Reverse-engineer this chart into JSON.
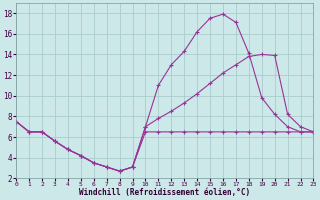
{
  "xlabel": "Windchill (Refroidissement éolien,°C)",
  "background_color": "#cce8e8",
  "grid_color": "#aacccc",
  "line_color": "#993399",
  "xlim": [
    0,
    23
  ],
  "ylim": [
    2,
    19
  ],
  "yticks": [
    2,
    4,
    6,
    8,
    10,
    12,
    14,
    16,
    18
  ],
  "xticks": [
    0,
    1,
    2,
    3,
    4,
    5,
    6,
    7,
    8,
    9,
    10,
    11,
    12,
    13,
    14,
    15,
    16,
    17,
    18,
    19,
    20,
    21,
    22,
    23
  ],
  "line1_x": [
    0,
    1,
    2,
    3,
    4,
    5,
    6,
    7,
    8,
    9,
    10,
    11,
    12,
    13,
    14,
    15,
    16,
    17,
    18,
    19,
    20,
    21,
    22,
    23
  ],
  "line1_y": [
    7.5,
    6.5,
    6.5,
    5.6,
    4.8,
    4.2,
    3.5,
    3.1,
    2.7,
    3.1,
    7.0,
    11.0,
    13.0,
    14.3,
    16.2,
    17.5,
    17.9,
    17.1,
    14.1,
    9.8,
    8.2,
    7.0,
    6.5,
    6.5
  ],
  "line2_x": [
    0,
    1,
    2,
    3,
    4,
    5,
    6,
    7,
    8,
    9,
    10,
    11,
    12,
    13,
    14,
    15,
    16,
    17,
    18,
    19,
    20,
    21,
    22,
    23
  ],
  "line2_y": [
    7.5,
    6.5,
    6.5,
    5.6,
    4.8,
    4.2,
    3.5,
    3.1,
    2.7,
    3.1,
    7.0,
    7.8,
    8.5,
    9.3,
    10.2,
    11.2,
    12.2,
    13.0,
    13.8,
    14.0,
    13.9,
    8.2,
    7.0,
    6.5
  ],
  "line3_x": [
    0,
    1,
    2,
    3,
    4,
    5,
    6,
    7,
    8,
    9,
    10,
    11,
    12,
    13,
    14,
    15,
    16,
    17,
    18,
    19,
    20,
    21,
    22,
    23
  ],
  "line3_y": [
    7.5,
    6.5,
    6.5,
    5.6,
    4.8,
    4.2,
    3.5,
    3.1,
    2.7,
    3.1,
    6.5,
    6.5,
    6.5,
    6.5,
    6.5,
    6.5,
    6.5,
    6.5,
    6.5,
    6.5,
    6.5,
    6.5,
    6.5,
    6.5
  ]
}
